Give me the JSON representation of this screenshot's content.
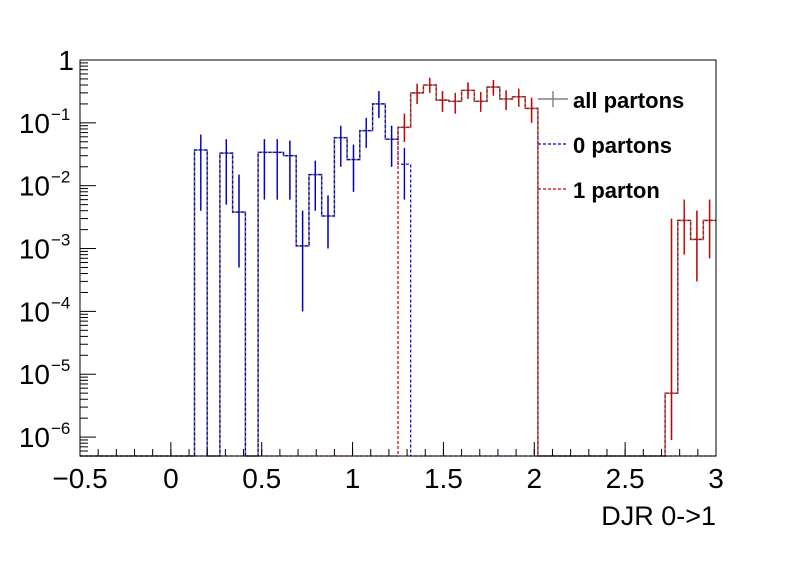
{
  "chart_data": {
    "type": "histogram-step",
    "xlabel": "DJR 0->1",
    "ylabel": "",
    "title": "",
    "xlim": [
      -0.5,
      3.0
    ],
    "ylim": [
      5e-07,
      1.0
    ],
    "yscale": "log",
    "grid": false,
    "legend_placement": "top-right",
    "x_ticks": [
      {
        "value": -0.5,
        "label": "−0.5"
      },
      {
        "value": 0,
        "label": "0"
      },
      {
        "value": 0.5,
        "label": "0.5"
      },
      {
        "value": 1,
        "label": "1"
      },
      {
        "value": 1.5,
        "label": "1.5"
      },
      {
        "value": 2,
        "label": "2"
      },
      {
        "value": 2.5,
        "label": "2.5"
      },
      {
        "value": 3,
        "label": "3"
      }
    ],
    "y_ticks": [
      {
        "value": 1,
        "base": "1",
        "exp": ""
      },
      {
        "value": 0.1,
        "base": "10",
        "exp": "−1"
      },
      {
        "value": 0.01,
        "base": "10",
        "exp": "−2"
      },
      {
        "value": 0.001,
        "base": "10",
        "exp": "−3"
      },
      {
        "value": 0.0001,
        "base": "10",
        "exp": "−4"
      },
      {
        "value": 1e-05,
        "base": "10",
        "exp": "−5"
      },
      {
        "value": 1e-06,
        "base": "10",
        "exp": "−6"
      }
    ],
    "bin_width": 0.07,
    "series": [
      {
        "name": "all partons",
        "color": "#808080",
        "style": "solid",
        "bins": [
          {
            "x0": 0.13,
            "y": 0.037,
            "err": [
              0.004,
              0.065
            ]
          },
          {
            "x0": 0.27,
            "y": 0.033,
            "err": [
              0.005,
              0.055
            ]
          },
          {
            "x0": 0.34,
            "y": 0.0038,
            "err": [
              0.0005,
              0.015
            ]
          },
          {
            "x0": 0.48,
            "y": 0.034,
            "err": [
              0.006,
              0.055
            ]
          },
          {
            "x0": 0.55,
            "y": 0.034,
            "err": [
              0.006,
              0.055
            ]
          },
          {
            "x0": 0.62,
            "y": 0.03,
            "err": [
              0.006,
              0.052
            ]
          },
          {
            "x0": 0.69,
            "y": 0.0011,
            "err": [
              0.0001,
              0.004
            ]
          },
          {
            "x0": 0.76,
            "y": 0.015,
            "err": [
              0.004,
              0.025
            ]
          },
          {
            "x0": 0.83,
            "y": 0.0033,
            "err": [
              0.001,
              0.007
            ]
          },
          {
            "x0": 0.9,
            "y": 0.058,
            "err": [
              0.02,
              0.09
            ]
          },
          {
            "x0": 0.97,
            "y": 0.026,
            "err": [
              0.008,
              0.045
            ]
          },
          {
            "x0": 1.04,
            "y": 0.075,
            "err": [
              0.04,
              0.12
            ]
          },
          {
            "x0": 1.11,
            "y": 0.2,
            "err": [
              0.12,
              0.32
            ]
          },
          {
            "x0": 1.18,
            "y": 0.055,
            "err": [
              0.02,
              0.09
            ]
          },
          {
            "x0": 1.25,
            "y": 0.085,
            "err": [
              0.05,
              0.14
            ]
          },
          {
            "x0": 1.32,
            "y": 0.3,
            "err": [
              0.2,
              0.42
            ]
          },
          {
            "x0": 1.39,
            "y": 0.4,
            "err": [
              0.3,
              0.52
            ]
          },
          {
            "x0": 1.46,
            "y": 0.23,
            "err": [
              0.15,
              0.32
            ]
          },
          {
            "x0": 1.53,
            "y": 0.22,
            "err": [
              0.14,
              0.3
            ]
          },
          {
            "x0": 1.6,
            "y": 0.33,
            "err": [
              0.24,
              0.44
            ]
          },
          {
            "x0": 1.67,
            "y": 0.22,
            "err": [
              0.15,
              0.31
            ]
          },
          {
            "x0": 1.74,
            "y": 0.37,
            "err": [
              0.27,
              0.48
            ]
          },
          {
            "x0": 1.81,
            "y": 0.24,
            "err": [
              0.16,
              0.33
            ]
          },
          {
            "x0": 1.88,
            "y": 0.26,
            "err": [
              0.18,
              0.35
            ]
          },
          {
            "x0": 1.95,
            "y": 0.17,
            "err": [
              0.1,
              0.25
            ]
          },
          {
            "x0": 2.72,
            "y": 5e-06,
            "err": [
              9e-07,
              0.003
            ]
          },
          {
            "x0": 2.79,
            "y": 0.0028,
            "err": [
              0.0008,
              0.006
            ]
          },
          {
            "x0": 2.86,
            "y": 0.0014,
            "err": [
              0.0003,
              0.004
            ]
          },
          {
            "x0": 2.93,
            "y": 0.0028,
            "err": [
              0.0007,
              0.006
            ]
          }
        ]
      },
      {
        "name": "0 partons",
        "color": "#0000cc",
        "style": "dashed",
        "bins": [
          {
            "x0": 0.13,
            "y": 0.037,
            "err": [
              0.004,
              0.065
            ]
          },
          {
            "x0": 0.27,
            "y": 0.033,
            "err": [
              0.005,
              0.055
            ]
          },
          {
            "x0": 0.34,
            "y": 0.0038,
            "err": [
              0.0005,
              0.015
            ]
          },
          {
            "x0": 0.48,
            "y": 0.034,
            "err": [
              0.006,
              0.055
            ]
          },
          {
            "x0": 0.55,
            "y": 0.034,
            "err": [
              0.006,
              0.055
            ]
          },
          {
            "x0": 0.62,
            "y": 0.03,
            "err": [
              0.006,
              0.052
            ]
          },
          {
            "x0": 0.69,
            "y": 0.0011,
            "err": [
              0.0001,
              0.004
            ]
          },
          {
            "x0": 0.76,
            "y": 0.015,
            "err": [
              0.004,
              0.025
            ]
          },
          {
            "x0": 0.83,
            "y": 0.0033,
            "err": [
              0.001,
              0.007
            ]
          },
          {
            "x0": 0.9,
            "y": 0.058,
            "err": [
              0.02,
              0.09
            ]
          },
          {
            "x0": 0.97,
            "y": 0.026,
            "err": [
              0.008,
              0.045
            ]
          },
          {
            "x0": 1.04,
            "y": 0.075,
            "err": [
              0.04,
              0.12
            ]
          },
          {
            "x0": 1.11,
            "y": 0.2,
            "err": [
              0.12,
              0.32
            ]
          },
          {
            "x0": 1.18,
            "y": 0.055,
            "err": [
              0.02,
              0.09
            ]
          },
          {
            "x0": 1.25,
            "y": 0.022,
            "err": [
              0.006,
              0.04
            ]
          }
        ]
      },
      {
        "name": "1 parton",
        "color": "#cc0000",
        "style": "dashed",
        "bins": [
          {
            "x0": 1.25,
            "y": 0.085,
            "err": [
              0.05,
              0.14
            ]
          },
          {
            "x0": 1.32,
            "y": 0.3,
            "err": [
              0.2,
              0.42
            ]
          },
          {
            "x0": 1.39,
            "y": 0.4,
            "err": [
              0.3,
              0.52
            ]
          },
          {
            "x0": 1.46,
            "y": 0.23,
            "err": [
              0.15,
              0.32
            ]
          },
          {
            "x0": 1.53,
            "y": 0.22,
            "err": [
              0.14,
              0.3
            ]
          },
          {
            "x0": 1.6,
            "y": 0.33,
            "err": [
              0.24,
              0.44
            ]
          },
          {
            "x0": 1.67,
            "y": 0.22,
            "err": [
              0.15,
              0.31
            ]
          },
          {
            "x0": 1.74,
            "y": 0.37,
            "err": [
              0.27,
              0.48
            ]
          },
          {
            "x0": 1.81,
            "y": 0.24,
            "err": [
              0.16,
              0.33
            ]
          },
          {
            "x0": 1.88,
            "y": 0.26,
            "err": [
              0.18,
              0.35
            ]
          },
          {
            "x0": 1.95,
            "y": 0.17,
            "err": [
              0.1,
              0.25
            ]
          },
          {
            "x0": 2.72,
            "y": 5e-06,
            "err": [
              9e-07,
              0.003
            ]
          },
          {
            "x0": 2.79,
            "y": 0.0028,
            "err": [
              0.0008,
              0.006
            ]
          },
          {
            "x0": 2.86,
            "y": 0.0014,
            "err": [
              0.0003,
              0.004
            ]
          },
          {
            "x0": 2.93,
            "y": 0.0028,
            "err": [
              0.0007,
              0.006
            ]
          }
        ]
      }
    ]
  }
}
